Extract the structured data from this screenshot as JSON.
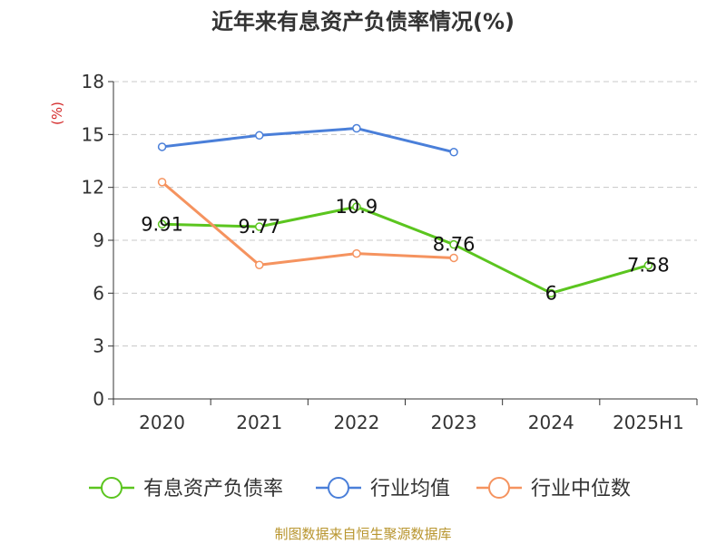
{
  "chart_data": {
    "type": "line",
    "title": "近年来有息资产负债率情况(%)",
    "ylabel": "(%)",
    "xlabel": "",
    "categories": [
      "2020",
      "2021",
      "2022",
      "2023",
      "2024",
      "2025H1"
    ],
    "ylim": [
      0,
      18
    ],
    "yticks": [
      0,
      3,
      6,
      9,
      12,
      15,
      18
    ],
    "grid": true,
    "legend_position": "bottom",
    "series": [
      {
        "name": "有息资产负债率",
        "color": "#5bc51f",
        "values": [
          9.91,
          9.77,
          10.9,
          8.76,
          6,
          7.58
        ],
        "labels": [
          "9.91",
          "9.77",
          "10.9",
          "8.76",
          "6",
          "7.58"
        ]
      },
      {
        "name": "行业均值",
        "color": "#4a7fd9",
        "values": [
          14.3,
          14.95,
          15.35,
          14.0,
          null,
          null
        ],
        "labels": []
      },
      {
        "name": "行业中位数",
        "color": "#f5935f",
        "values": [
          12.3,
          7.6,
          8.25,
          8.0,
          null,
          null
        ],
        "labels": []
      }
    ]
  },
  "source_note": "制图数据来自恒生聚源数据库"
}
